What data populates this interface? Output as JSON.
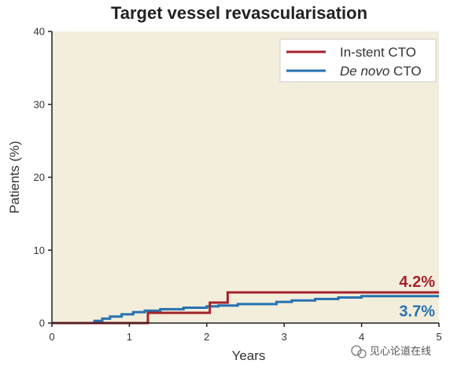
{
  "chart_data": {
    "type": "line",
    "title": "Target vessel revascularisation",
    "xlabel": "Years",
    "ylabel": "Patients (%)",
    "xlim": [
      0,
      5
    ],
    "ylim": [
      0,
      40
    ],
    "xticks": [
      "0",
      "1",
      "2",
      "3",
      "4",
      "5"
    ],
    "yticks": [
      "0",
      "10",
      "20",
      "30",
      "40"
    ],
    "grid": false,
    "legend_position": "top-right",
    "series": [
      {
        "name": "In-stent CTO",
        "color": "#a3232b",
        "step": true,
        "x": [
          0,
          1.24,
          1.24,
          2.04,
          2.04,
          2.27,
          2.27,
          5
        ],
        "y": [
          0,
          0,
          1.4,
          1.4,
          2.8,
          2.8,
          4.2,
          4.2
        ],
        "end_label": "4.2%"
      },
      {
        "name": "De novo CTO",
        "name_parts": [
          "De novo",
          " CTO"
        ],
        "color": "#2672b0",
        "step": true,
        "x": [
          0,
          0.55,
          0.55,
          0.65,
          0.65,
          0.75,
          0.75,
          0.9,
          0.9,
          1.05,
          1.05,
          1.2,
          1.2,
          1.4,
          1.4,
          1.7,
          1.7,
          2.0,
          2.0,
          2.15,
          2.15,
          2.4,
          2.4,
          2.9,
          2.9,
          3.1,
          3.1,
          3.4,
          3.4,
          3.7,
          3.7,
          4.0,
          4.0,
          5
        ],
        "y": [
          0,
          0,
          0.3,
          0.3,
          0.6,
          0.6,
          0.9,
          0.9,
          1.2,
          1.2,
          1.5,
          1.5,
          1.7,
          1.7,
          1.9,
          1.9,
          2.1,
          2.1,
          2.3,
          2.3,
          2.4,
          2.4,
          2.6,
          2.6,
          2.9,
          2.9,
          3.1,
          3.1,
          3.3,
          3.3,
          3.5,
          3.5,
          3.7,
          3.7
        ],
        "end_label": "3.7%"
      }
    ]
  },
  "colors": {
    "plot_background": "#f3eddc",
    "axis": "#222222"
  },
  "watermark": {
    "icon": "wechat-icon",
    "text": "见心论道在线"
  }
}
